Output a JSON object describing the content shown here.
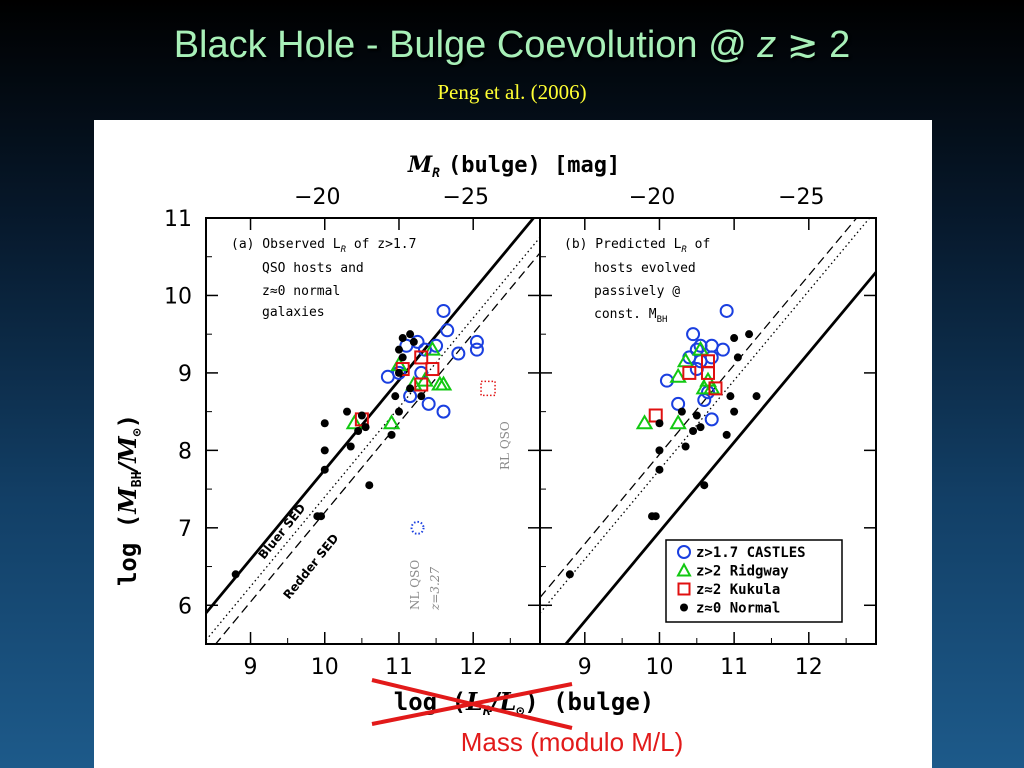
{
  "slide": {
    "title": "Black Hole - Bulge Coevolution @",
    "title_z": "z",
    "title_cond": "≳ 2",
    "subtitle": "Peng et al. (2006)",
    "caption": "Mass (modulo M/L)"
  },
  "figure": {
    "top_axis_label": "M",
    "top_axis_label_sub": "R",
    "top_axis_label_rest": "(bulge) [mag]",
    "bottom_axis_label_pre": "log (",
    "bottom_axis_label_L": "L",
    "bottom_axis_label_sub": "R",
    "bottom_axis_label_div": "/L",
    "bottom_axis_label_sun": "⊙",
    "bottom_axis_label_post": ") (bulge)",
    "y_axis_label_pre": "log (",
    "y_axis_label_M": "M",
    "y_axis_label_sub": "BH",
    "y_axis_label_div": "/M",
    "y_axis_label_sun": "⊙",
    "y_axis_label_post": ")",
    "line_label_bluer": "Bluer SED",
    "line_label_redder": "Redder SED",
    "annot_rl": "RL QSO",
    "annot_nl": "NL QSO",
    "annot_nl_z": "z=3.27",
    "legend": [
      {
        "label": "z>1.7 CASTLES",
        "color": "#1a3fe0",
        "marker": "circle"
      },
      {
        "label": "z>2 Ridgway",
        "color": "#12c812",
        "marker": "triangle"
      },
      {
        "label": "z≈2 Kukula",
        "color": "#e01010",
        "marker": "square"
      },
      {
        "label": "z≈0 Normal",
        "color": "#000000",
        "marker": "dot"
      }
    ],
    "colors": {
      "castles": "#1a3fe0",
      "ridgway": "#12c812",
      "kukula": "#e01010",
      "normal": "#000000",
      "annotation": "#8a8a8a"
    }
  },
  "chart_data": [
    {
      "type": "scatter",
      "panel": "a",
      "annotation_lines": [
        "(a) Observed L",
        "R",
        " of z>1.7",
        "QSO hosts and",
        "z≈0 normal",
        "galaxies"
      ],
      "xlabel": "log (L_R/L_⊙) (bulge)",
      "ylabel": "log (M_BH/M_⊙)",
      "top_xlabel": "M_R (bulge) [mag]",
      "xlim": [
        8.4,
        12.9
      ],
      "ylim": [
        5.5,
        11
      ],
      "xticks": [
        9,
        10,
        11,
        12
      ],
      "yticks": [
        6,
        7,
        8,
        9,
        10,
        11
      ],
      "top_ticks": [
        {
          "value": -20,
          "x": 9.9
        },
        {
          "value": -25,
          "x": 11.9
        }
      ],
      "lines": [
        {
          "name": "Bluer SED",
          "style": "solid",
          "x": [
            8.4,
            12.9
          ],
          "y": [
            5.9,
            11.1
          ]
        },
        {
          "name": "dotted",
          "style": "dotted",
          "x": [
            8.4,
            12.9
          ],
          "y": [
            5.55,
            10.75
          ]
        },
        {
          "name": "Redder SED",
          "style": "dashed",
          "x": [
            8.4,
            12.9
          ],
          "y": [
            5.35,
            10.55
          ]
        }
      ],
      "series": [
        {
          "name": "z>1.7 CASTLES",
          "marker": "circle",
          "points": [
            [
              10.85,
              8.95
            ],
            [
              11.1,
              9.35
            ],
            [
              11.25,
              9.4
            ],
            [
              11.35,
              9.3
            ],
            [
              11.5,
              9.35
            ],
            [
              11.65,
              9.55
            ],
            [
              11.8,
              9.25
            ],
            [
              12.05,
              9.3
            ],
            [
              12.05,
              9.4
            ],
            [
              11.0,
              9.0
            ],
            [
              11.15,
              8.7
            ],
            [
              11.4,
              8.6
            ],
            [
              11.6,
              8.5
            ],
            [
              11.6,
              9.8
            ],
            [
              11.3,
              9.0
            ]
          ]
        },
        {
          "name": "z>2 Ridgway",
          "marker": "triangle",
          "points": [
            [
              10.4,
              8.35
            ],
            [
              10.9,
              8.35
            ],
            [
              11.0,
              9.1
            ],
            [
              11.2,
              8.85
            ],
            [
              11.35,
              8.9
            ],
            [
              11.55,
              8.85
            ],
            [
              11.45,
              9.3
            ],
            [
              11.6,
              8.85
            ]
          ]
        },
        {
          "name": "z≈2 Kukula",
          "marker": "square",
          "points": [
            [
              10.5,
              8.4
            ],
            [
              11.05,
              9.05
            ],
            [
              11.3,
              8.85
            ],
            [
              11.3,
              9.2
            ],
            [
              11.45,
              9.05
            ]
          ]
        },
        {
          "name": "z≈0 Normal",
          "marker": "dot",
          "points": [
            [
              8.8,
              6.4
            ],
            [
              9.9,
              7.15
            ],
            [
              9.95,
              7.15
            ],
            [
              10.0,
              7.75
            ],
            [
              10.0,
              8.35
            ],
            [
              10.0,
              8.0
            ],
            [
              10.3,
              8.5
            ],
            [
              10.35,
              8.05
            ],
            [
              10.45,
              8.25
            ],
            [
              10.5,
              8.45
            ],
            [
              10.6,
              7.55
            ],
            [
              10.55,
              8.3
            ],
            [
              10.9,
              8.2
            ],
            [
              10.95,
              8.7
            ],
            [
              11.0,
              8.5
            ],
            [
              11.0,
              9.0
            ],
            [
              11.05,
              9.2
            ],
            [
              11.15,
              9.5
            ],
            [
              11.05,
              9.45
            ],
            [
              11.2,
              9.4
            ],
            [
              11.0,
              9.3
            ],
            [
              11.3,
              8.7
            ],
            [
              11.15,
              8.8
            ]
          ]
        },
        {
          "name": "NL QSO",
          "marker": "circle-dotted",
          "color": "#1a3fe0",
          "points": [
            [
              11.25,
              7.0
            ]
          ]
        },
        {
          "name": "RL QSO",
          "marker": "square-dotted",
          "color": "#e01010",
          "points": [
            [
              12.2,
              8.8
            ]
          ]
        }
      ]
    },
    {
      "type": "scatter",
      "panel": "b",
      "annotation_lines": [
        "(b) Predicted L",
        "R",
        " of",
        "hosts evolved",
        "passively @",
        "const. M",
        "BH"
      ],
      "xlabel": "log (L_R/L_⊙) (bulge)",
      "ylabel": "log (M_BH/M_⊙)",
      "top_xlabel": "M_R (bulge) [mag]",
      "xlim": [
        8.4,
        12.9
      ],
      "ylim": [
        5.5,
        11
      ],
      "xticks": [
        9,
        10,
        11,
        12
      ],
      "yticks": [
        6,
        7,
        8,
        9,
        10,
        11
      ],
      "top_ticks": [
        {
          "value": -20,
          "x": 9.9
        },
        {
          "value": -25,
          "x": 11.9
        }
      ],
      "lines": [
        {
          "style": "solid",
          "x": [
            8.4,
            12.9
          ],
          "y": [
            5.1,
            10.3
          ]
        },
        {
          "style": "dotted",
          "x": [
            8.4,
            12.9
          ],
          "y": [
            5.9,
            11.1
          ]
        },
        {
          "style": "dashed",
          "x": [
            8.4,
            12.9
          ],
          "y": [
            6.1,
            11.3
          ]
        }
      ],
      "series": [
        {
          "name": "z>1.7 CASTLES",
          "marker": "circle",
          "points": [
            [
              10.1,
              8.9
            ],
            [
              10.25,
              8.6
            ],
            [
              10.4,
              9.2
            ],
            [
              10.5,
              9.3
            ],
            [
              10.55,
              9.35
            ],
            [
              10.55,
              9.15
            ],
            [
              10.65,
              8.75
            ],
            [
              10.7,
              9.2
            ],
            [
              10.7,
              9.35
            ],
            [
              10.85,
              9.3
            ],
            [
              10.9,
              9.8
            ],
            [
              10.6,
              8.65
            ],
            [
              10.5,
              9.05
            ],
            [
              10.7,
              8.4
            ],
            [
              10.45,
              9.5
            ]
          ]
        },
        {
          "name": "z>2 Ridgway",
          "marker": "triangle",
          "points": [
            [
              9.8,
              8.35
            ],
            [
              10.25,
              8.35
            ],
            [
              10.25,
              8.95
            ],
            [
              10.35,
              9.15
            ],
            [
              10.6,
              8.8
            ],
            [
              10.55,
              9.3
            ],
            [
              10.65,
              8.9
            ],
            [
              10.7,
              8.8
            ]
          ]
        },
        {
          "name": "z≈2 Kukula",
          "marker": "square",
          "points": [
            [
              9.95,
              8.45
            ],
            [
              10.4,
              9.0
            ],
            [
              10.65,
              9.0
            ],
            [
              10.65,
              9.15
            ],
            [
              10.75,
              8.8
            ]
          ]
        },
        {
          "name": "z≈0 Normal",
          "marker": "dot",
          "points": [
            [
              8.8,
              6.4
            ],
            [
              9.9,
              7.15
            ],
            [
              9.95,
              7.15
            ],
            [
              10.0,
              7.75
            ],
            [
              10.0,
              8.35
            ],
            [
              10.0,
              8.0
            ],
            [
              10.3,
              8.5
            ],
            [
              10.35,
              8.05
            ],
            [
              10.45,
              8.25
            ],
            [
              10.5,
              8.45
            ],
            [
              10.6,
              7.55
            ],
            [
              10.55,
              8.3
            ],
            [
              10.9,
              8.2
            ],
            [
              10.95,
              8.7
            ],
            [
              11.0,
              8.5
            ],
            [
              11.05,
              9.2
            ],
            [
              11.0,
              9.45
            ],
            [
              11.3,
              8.7
            ],
            [
              11.2,
              9.5
            ]
          ]
        }
      ]
    }
  ]
}
